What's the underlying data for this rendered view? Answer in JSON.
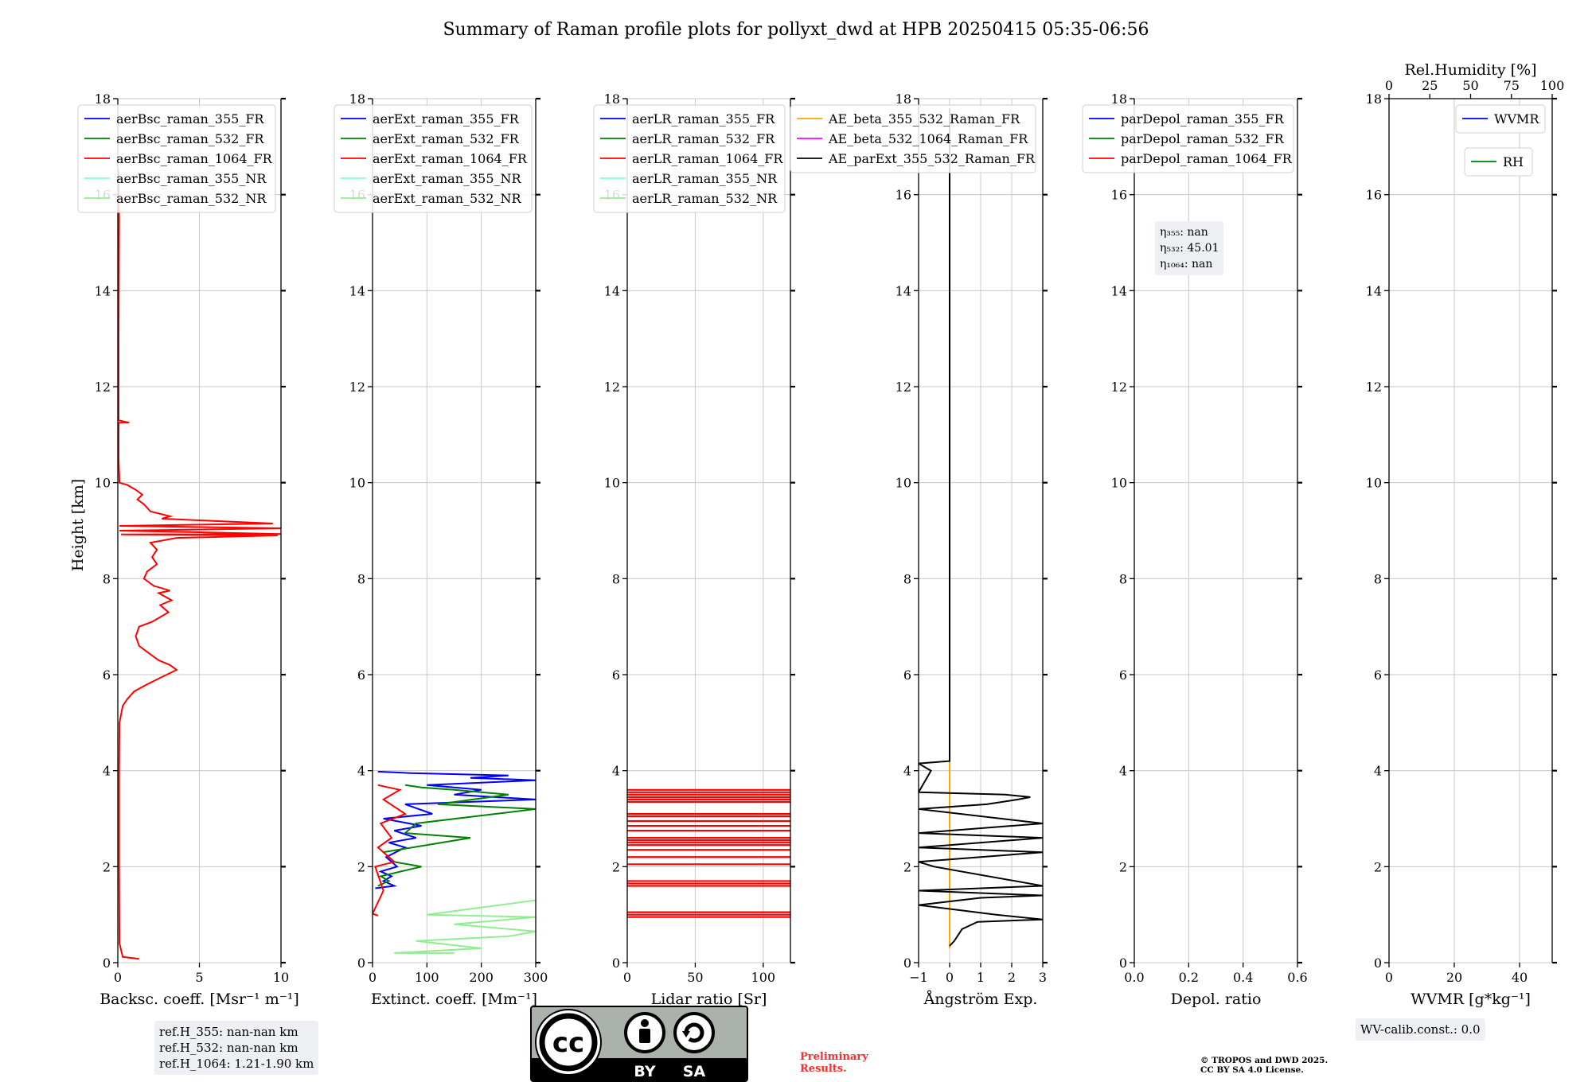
{
  "title": "Summary of Raman profile plots for pollyxt_dwd at HPB 20250415 05:35-06:56",
  "y_label": "Height [km]",
  "y_ticks": [
    "0",
    "2",
    "4",
    "6",
    "8",
    "10",
    "12",
    "14",
    "16",
    "18"
  ],
  "ref_heights": [
    "ref.H_355: nan-nan km",
    "ref.H_532: nan-nan km",
    "ref.H_1064: 1.21-1.90 km"
  ],
  "eta_values": [
    "η₃₅₅: nan",
    "η₅₃₂: 45.01",
    "η₁₀₆₄: nan"
  ],
  "wv_calib": "WV-calib.const.: 0.0",
  "license_labels": {
    "cc": "cc",
    "by": "BY",
    "sa": "SA"
  },
  "preliminary": [
    "Preliminary",
    "Results."
  ],
  "copyright": [
    "© TROPOS and DWD 2025.",
    "CC BY SA 4.0 License."
  ],
  "colors": {
    "blue": "#0000ff",
    "green": "#008000",
    "red": "#ff0000",
    "cyan": "#7fffd4",
    "lightgreen": "#90ee90",
    "orange": "#ffa500",
    "magenta": "#ff00ff",
    "black": "#000000"
  },
  "chart_data": [
    {
      "type": "line",
      "xlabel": "Backsc. coeff. [Msr⁻¹ m⁻¹]",
      "xlim": [
        0,
        10
      ],
      "xticks": [
        "0",
        "5",
        "10"
      ],
      "ylim": [
        0,
        18
      ],
      "legend": [
        "aerBsc_raman_355_FR",
        "aerBsc_raman_532_FR",
        "aerBsc_raman_1064_FR",
        "aerBsc_raman_355_NR",
        "aerBsc_raman_532_NR"
      ],
      "legend_colors": [
        "blue",
        "green",
        "red",
        "cyan",
        "lightgreen"
      ],
      "series": [
        {
          "name": "aerBsc_raman_1064_FR",
          "color": "red",
          "points": [
            [
              1.3,
              0.08
            ],
            [
              0.3,
              0.12
            ],
            [
              0.1,
              0.4
            ],
            [
              0.08,
              2.0
            ],
            [
              0.08,
              4.0
            ],
            [
              0.1,
              5.0
            ],
            [
              0.3,
              5.35
            ],
            [
              0.6,
              5.5
            ],
            [
              1.0,
              5.65
            ],
            [
              1.8,
              5.8
            ],
            [
              2.4,
              5.9
            ],
            [
              3.0,
              6.0
            ],
            [
              3.6,
              6.1
            ],
            [
              3.2,
              6.2
            ],
            [
              2.5,
              6.3
            ],
            [
              1.9,
              6.45
            ],
            [
              1.3,
              6.6
            ],
            [
              1.1,
              6.8
            ],
            [
              1.3,
              7.0
            ],
            [
              2.1,
              7.1
            ],
            [
              3.1,
              7.3
            ],
            [
              2.6,
              7.45
            ],
            [
              3.3,
              7.55
            ],
            [
              2.5,
              7.7
            ],
            [
              3.2,
              7.75
            ],
            [
              2.2,
              7.85
            ],
            [
              1.6,
              8.0
            ],
            [
              1.8,
              8.15
            ],
            [
              2.4,
              8.3
            ],
            [
              2.1,
              8.45
            ],
            [
              2.4,
              8.6
            ],
            [
              2.0,
              8.75
            ],
            [
              3.6,
              8.85
            ],
            [
              9.8,
              8.9
            ],
            [
              0.2,
              8.92
            ],
            [
              10,
              8.93
            ],
            [
              0.1,
              9.0
            ],
            [
              10,
              9.05
            ],
            [
              0.1,
              9.1
            ],
            [
              9.5,
              9.15
            ],
            [
              6.0,
              9.2
            ],
            [
              2.7,
              9.25
            ],
            [
              3.2,
              9.3
            ],
            [
              2.0,
              9.4
            ],
            [
              1.6,
              9.55
            ],
            [
              1.2,
              9.65
            ],
            [
              1.5,
              9.75
            ],
            [
              1.1,
              9.85
            ],
            [
              0.6,
              9.95
            ],
            [
              0.1,
              10.0
            ],
            [
              0.05,
              10.5
            ],
            [
              0.05,
              11.0
            ],
            [
              0.06,
              11.25
            ],
            [
              0.7,
              11.25
            ],
            [
              0.05,
              11.3
            ],
            [
              0.05,
              13.0
            ],
            [
              0.08,
              15.5
            ],
            [
              0.05,
              16.5
            ]
          ]
        }
      ]
    },
    {
      "type": "line",
      "xlabel": "Extinct. coeff. [Mm⁻¹]",
      "xlim": [
        0,
        300
      ],
      "xticks": [
        "0",
        "100",
        "200",
        "300"
      ],
      "ylim": [
        0,
        18
      ],
      "legend": [
        "aerExt_raman_355_FR",
        "aerExt_raman_532_FR",
        "aerExt_raman_1064_FR",
        "aerExt_raman_355_NR",
        "aerExt_raman_532_NR"
      ],
      "legend_colors": [
        "blue",
        "green",
        "red",
        "cyan",
        "lightgreen"
      ],
      "series": [
        {
          "name": "aerExt_raman_355_FR",
          "color": "blue",
          "points": [
            [
              5,
              1.55
            ],
            [
              40,
              1.6
            ],
            [
              20,
              1.7
            ],
            [
              35,
              1.8
            ],
            [
              15,
              1.9
            ],
            [
              45,
              2.0
            ],
            [
              25,
              2.2
            ],
            [
              60,
              2.4
            ],
            [
              30,
              2.5
            ],
            [
              80,
              2.6
            ],
            [
              40,
              2.75
            ],
            [
              90,
              2.85
            ],
            [
              20,
              3.0
            ],
            [
              110,
              3.1
            ],
            [
              60,
              3.3
            ],
            [
              300,
              3.4
            ],
            [
              150,
              3.5
            ],
            [
              200,
              3.6
            ],
            [
              100,
              3.7
            ],
            [
              300,
              3.8
            ],
            [
              180,
              3.85
            ],
            [
              250,
              3.9
            ],
            [
              70,
              3.95
            ],
            [
              10,
              3.98
            ]
          ]
        },
        {
          "name": "aerExt_raman_532_FR",
          "color": "green",
          "points": [
            [
              10,
              1.6
            ],
            [
              30,
              1.7
            ],
            [
              15,
              1.8
            ],
            [
              90,
              2.0
            ],
            [
              40,
              2.1
            ],
            [
              20,
              2.3
            ],
            [
              180,
              2.6
            ],
            [
              60,
              2.7
            ],
            [
              80,
              2.9
            ],
            [
              300,
              3.2
            ],
            [
              120,
              3.3
            ],
            [
              250,
              3.5
            ],
            [
              150,
              3.6
            ],
            [
              90,
              3.65
            ],
            [
              60,
              3.7
            ]
          ]
        },
        {
          "name": "aerExt_raman_1064_FR",
          "color": "red",
          "points": [
            [
              10,
              0.98
            ],
            [
              0,
              1.02
            ],
            [
              20,
              1.5
            ],
            [
              5,
              2.0
            ],
            [
              40,
              2.1
            ],
            [
              10,
              2.4
            ],
            [
              35,
              2.6
            ],
            [
              15,
              2.9
            ],
            [
              60,
              3.1
            ],
            [
              20,
              3.4
            ],
            [
              50,
              3.6
            ],
            [
              10,
              3.7
            ]
          ]
        },
        {
          "name": "aerExt_raman_532_NR",
          "color": "lightgreen",
          "points": [
            [
              300,
              1.3
            ],
            [
              100,
              1.0
            ],
            [
              300,
              0.95
            ],
            [
              150,
              0.8
            ],
            [
              300,
              0.65
            ],
            [
              250,
              0.55
            ],
            [
              80,
              0.45
            ],
            [
              200,
              0.3
            ],
            [
              40,
              0.2
            ],
            [
              150,
              0.2
            ]
          ]
        }
      ]
    },
    {
      "type": "line",
      "xlabel": "Lidar ratio [Sr]",
      "xlim": [
        0,
        120
      ],
      "xticks": [
        "0",
        "50",
        "100"
      ],
      "ylim": [
        0,
        18
      ],
      "legend": [
        "aerLR_raman_355_FR",
        "aerLR_raman_532_FR",
        "aerLR_raman_1064_FR",
        "aerLR_raman_355_NR",
        "aerLR_raman_532_NR"
      ],
      "legend_colors": [
        "blue",
        "green",
        "red",
        "cyan",
        "lightgreen"
      ],
      "series": [
        {
          "name": "aerLR_raman_1064_FR",
          "color": "red",
          "hlines": [
            0.95,
            1.0,
            1.05,
            1.6,
            1.65,
            1.7,
            2.05,
            2.2,
            2.35,
            2.45,
            2.5,
            2.55,
            2.6,
            2.75,
            2.85,
            2.95,
            3.05,
            3.1,
            3.35,
            3.4,
            3.45,
            3.5,
            3.55,
            3.6
          ]
        }
      ]
    },
    {
      "type": "line",
      "xlabel": "Ångström Exp.",
      "xlim": [
        -1,
        3
      ],
      "xticks": [
        "−1",
        "0",
        "1",
        "2",
        "3"
      ],
      "ylim": [
        0,
        18
      ],
      "legend": [
        "AE_beta_355_532_Raman_FR",
        "AE_beta_532_1064_Raman_FR",
        "AE_parExt_355_532_Raman_FR"
      ],
      "legend_colors": [
        "orange",
        "magenta",
        "black"
      ],
      "series": [
        {
          "name": "AE_beta_355_532_Raman_FR",
          "color": "orange",
          "points": [
            [
              0,
              0.3
            ],
            [
              0,
              4.2
            ]
          ]
        },
        {
          "name": "AE_parExt_355_532_Raman_FR",
          "color": "black",
          "points": [
            [
              0,
              0.35
            ],
            [
              0.15,
              0.45
            ],
            [
              0.4,
              0.7
            ],
            [
              0.9,
              0.85
            ],
            [
              3,
              0.9
            ],
            [
              1.5,
              1.0
            ],
            [
              -1,
              1.2
            ],
            [
              1.0,
              1.35
            ],
            [
              3,
              1.4
            ],
            [
              -1,
              1.5
            ],
            [
              3,
              1.6
            ],
            [
              -0.5,
              2.0
            ],
            [
              -1,
              2.1
            ],
            [
              3,
              2.3
            ],
            [
              -1,
              2.4
            ],
            [
              3,
              2.6
            ],
            [
              -1,
              2.7
            ],
            [
              3,
              2.9
            ],
            [
              -1,
              3.2
            ],
            [
              1.2,
              3.3
            ],
            [
              2.2,
              3.4
            ],
            [
              2.6,
              3.45
            ],
            [
              1.8,
              3.5
            ],
            [
              -1,
              3.55
            ],
            [
              -0.6,
              4.0
            ],
            [
              -1,
              4.15
            ],
            [
              0,
              4.2
            ],
            [
              0,
              17.8
            ]
          ]
        }
      ]
    },
    {
      "type": "line",
      "xlabel": "Depol. ratio",
      "xlim": [
        0,
        0.6
      ],
      "xticks": [
        "0.0",
        "0.2",
        "0.4",
        "0.6"
      ],
      "ylim": [
        0,
        18
      ],
      "legend": [
        "parDepol_raman_355_FR",
        "parDepol_raman_532_FR",
        "parDepol_raman_1064_FR"
      ],
      "legend_colors": [
        "blue",
        "green",
        "red"
      ],
      "series": []
    },
    {
      "type": "line",
      "xlabel": "WVMR [g*kg⁻¹]",
      "top_xlabel": "Rel.Humidity [%]",
      "xlim": [
        0,
        50
      ],
      "xticks": [
        "0",
        "20",
        "40"
      ],
      "top_xticks": [
        "0",
        "25",
        "50",
        "75",
        "100"
      ],
      "ylim": [
        0,
        18
      ],
      "legend": [
        "WVMR"
      ],
      "legend_colors": [
        "blue"
      ],
      "legend2": [
        "RH"
      ],
      "legend2_colors": [
        "green"
      ],
      "series": []
    }
  ]
}
